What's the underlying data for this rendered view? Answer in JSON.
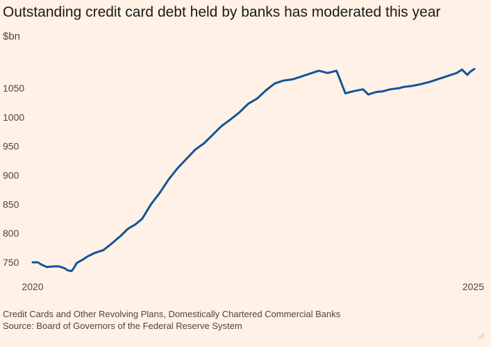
{
  "title": "Outstanding credit card debt held by banks has moderated this year",
  "unit": "$bn",
  "footnotes": {
    "description": "Credit Cards and Other Revolving Plans, Domestically Chartered Commercial Banks",
    "source": "Source: Board of Governors of the Federal Reserve System"
  },
  "colors": {
    "background": "#fff1e5",
    "line": "#0f5499",
    "text": "#33302e"
  },
  "chart_data": {
    "type": "line",
    "title": "Outstanding credit card debt held by banks has moderated this year",
    "ylabel": "$bn",
    "xlim": [
      2020,
      2025
    ],
    "ylim": [
      730,
      1090
    ],
    "xticks": [
      2020,
      2025
    ],
    "x_tick_labels": [
      "2020",
      "2025"
    ],
    "yticks": [
      750,
      800,
      850,
      900,
      950,
      1000,
      1050
    ],
    "y_tick_labels": [
      "750",
      "800",
      "850",
      "900",
      "950",
      "1000",
      "1050"
    ],
    "grid": false,
    "series": [
      {
        "x": [
          2020.0,
          2020.06,
          2020.1,
          2020.16,
          2020.24,
          2020.3,
          2020.36,
          2020.4,
          2020.44,
          2020.47,
          2020.5,
          2020.56,
          2020.62,
          2020.7,
          2020.8,
          2020.9,
          2021.0,
          2021.08,
          2021.16,
          2021.24,
          2021.34,
          2021.44,
          2021.54,
          2021.64,
          2021.74,
          2021.84,
          2021.94,
          2022.04,
          2022.14,
          2022.24,
          2022.34,
          2022.44,
          2022.54,
          2022.64,
          2022.74,
          2022.84,
          2022.94,
          2023.04,
          2023.14,
          2023.24,
          2023.34,
          2023.44,
          2023.54,
          2023.64,
          2023.74,
          2023.8,
          2023.84,
          2023.88,
          2023.92,
          2023.95,
          2024.0,
          2024.05,
          2024.1,
          2024.15,
          2024.2,
          2024.3,
          2024.4,
          2024.5,
          2024.6,
          2024.7,
          2024.8,
          2024.86,
          2024.92,
          2024.96,
          2025.0
        ],
        "y": [
          750,
          750,
          746,
          742,
          743,
          743,
          740,
          736,
          735,
          741,
          749,
          754,
          760,
          766,
          771,
          783,
          796,
          808,
          815,
          825,
          850,
          870,
          893,
          912,
          928,
          944,
          955,
          970,
          985,
          996,
          1008,
          1023,
          1032,
          1046,
          1058,
          1063,
          1065,
          1070,
          1075,
          1080,
          1076,
          1080,
          1041,
          1045,
          1048,
          1039,
          1041,
          1043,
          1044,
          1044,
          1046,
          1048,
          1049,
          1050,
          1052,
          1054,
          1057,
          1061,
          1066,
          1071,
          1076,
          1082,
          1073,
          1079,
          1083
        ]
      }
    ]
  }
}
